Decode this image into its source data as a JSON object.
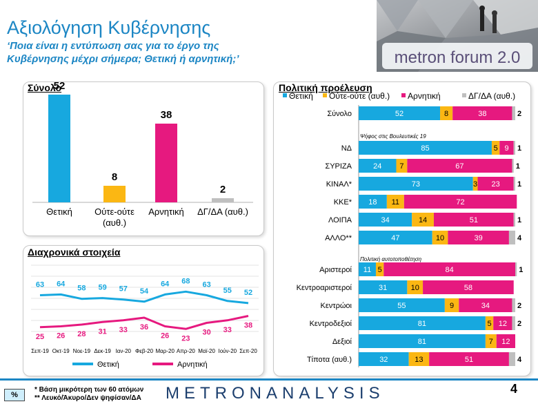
{
  "header": {
    "title": "Αξιολόγηση Κυβέρνησης",
    "subtitle": "‘Ποια είναι η εντύπωση σας για το έργο της Κυβέρνησης μέχρι σήμερα; Θετική ή αρνητική;’",
    "brand": "metron forum 2.0"
  },
  "colors": {
    "positive": "#17a8df",
    "neutral": "#fbb713",
    "negative": "#e6197f",
    "dk": "#bfbfbf"
  },
  "chart_data": [
    {
      "type": "bar",
      "title": "Σύνολο",
      "categories": [
        "Θετική",
        "Ούτε-ούτε (αυθ.)",
        "Αρνητική",
        "ΔΓ/ΔΑ (αυθ.)"
      ],
      "values": [
        52,
        8,
        38,
        2
      ],
      "ylim": [
        0,
        60
      ]
    },
    {
      "type": "line",
      "title": "Διαχρονικά στοιχεία",
      "categories": [
        "Σεπ-19",
        "Οκτ-19",
        "Νοε-19",
        "Δεκ-19",
        "Ιαν-20",
        "Φεβ-20",
        "Μαρ-20",
        "Απρ-20",
        "Μαϊ-20",
        "Ιούν-20",
        "Σεπ-20"
      ],
      "series": [
        {
          "name": "Θετική",
          "values": [
            63,
            64,
            58,
            59,
            57,
            54,
            64,
            68,
            63,
            55,
            52
          ]
        },
        {
          "name": "Αρνητική",
          "values": [
            25,
            26,
            28,
            31,
            33,
            36,
            26,
            23,
            30,
            33,
            38
          ]
        }
      ],
      "ylim": [
        0,
        80
      ]
    },
    {
      "type": "bar",
      "title": "Πολιτική προέλευση",
      "legend": [
        "Θετική",
        "Ούτε-ούτε (αυθ.)",
        "Αρνητική",
        "ΔΓ/ΔΑ (αυθ.)"
      ],
      "section_labels": [
        "Ψήφος στις Βουλευτικές 19",
        "Πολιτική αυτοτοποθέτηση"
      ],
      "rows": [
        {
          "label": "Σύνολο",
          "values": [
            52,
            8,
            38,
            2
          ]
        },
        {
          "label": "ΝΔ",
          "values": [
            85,
            5,
            9,
            1
          ]
        },
        {
          "label": "ΣΥΡΙΖΑ",
          "values": [
            24,
            7,
            67,
            1
          ]
        },
        {
          "label": "ΚΙΝΑΛ*",
          "values": [
            73,
            3,
            23,
            1
          ]
        },
        {
          "label": "ΚΚΕ*",
          "values": [
            18,
            11,
            72,
            0
          ]
        },
        {
          "label": "ΛΟΙΠΑ",
          "values": [
            34,
            14,
            51,
            1
          ]
        },
        {
          "label": "ΑΛΛΟ**",
          "values": [
            47,
            10,
            39,
            4
          ]
        },
        {
          "label": "Αριστεροί",
          "values": [
            11,
            5,
            84,
            1
          ]
        },
        {
          "label": "Κεντροαριστεροί",
          "values": [
            31,
            10,
            58,
            0
          ]
        },
        {
          "label": "Κεντρώοι",
          "values": [
            55,
            9,
            34,
            2
          ]
        },
        {
          "label": "Κεντροδεξιοί",
          "values": [
            81,
            5,
            12,
            2
          ]
        },
        {
          "label": "Δεξιοί",
          "values": [
            81,
            7,
            12,
            0
          ]
        },
        {
          "label": "Τίποτα (αυθ.)",
          "values": [
            32,
            13,
            51,
            4
          ]
        }
      ]
    }
  ],
  "footer": {
    "badge": "%",
    "note1": "*  Βάση μικρότερη των 60 ατόμων",
    "note2": "** Λευκό/Άκυρο/Δεν ψηφίσαν/ΔΑ",
    "logo": "METRONANALYSIS",
    "page": "4"
  }
}
